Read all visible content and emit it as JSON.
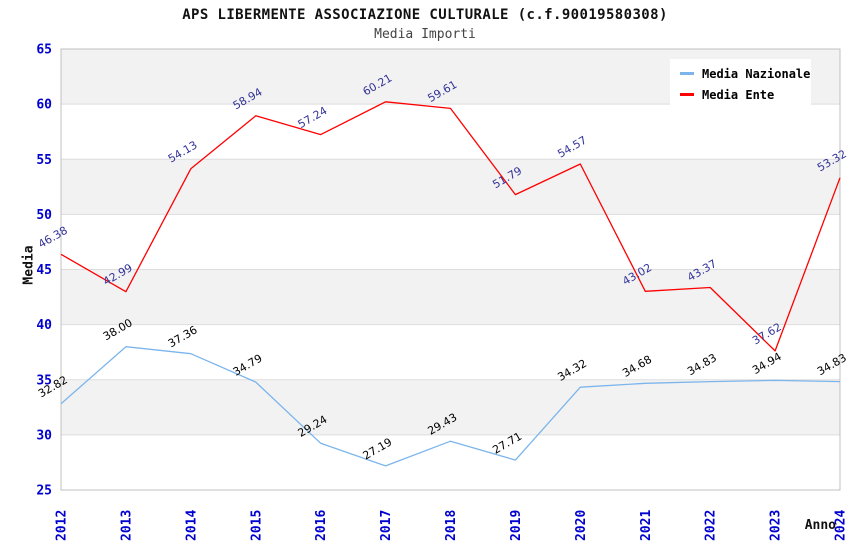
{
  "chart_data": {
    "type": "line",
    "title": "APS LIBERMENTE ASSOCIAZIONE CULTURALE (c.f.90019580308)",
    "subtitle": "Media Importi",
    "xlabel": "Anno",
    "ylabel": "Media",
    "ylim": [
      25,
      65
    ],
    "ytick_step": 5,
    "grid": "horizontal-lines-with-alternating-bands",
    "legend_position": "top-right",
    "categories": [
      "2012",
      "2013",
      "2014",
      "2015",
      "2016",
      "2017",
      "2018",
      "2019",
      "2020",
      "2021",
      "2022",
      "2023",
      "2024"
    ],
    "series": [
      {
        "name": "Media Nazionale",
        "color": "#7CB5EC",
        "label_color": "#000000",
        "values": [
          32.82,
          38.0,
          37.36,
          34.79,
          29.24,
          27.19,
          29.43,
          27.71,
          34.32,
          34.68,
          34.83,
          34.94,
          34.83
        ],
        "labels": [
          "32.82",
          "38.00",
          "37.36",
          "34.79",
          "29.24",
          "27.19",
          "29.43",
          "27.71",
          "34.32",
          "34.68",
          "34.83",
          "34.94",
          "34.83"
        ]
      },
      {
        "name": "Media Ente",
        "color": "#FF0000",
        "label_color": "#333399",
        "values": [
          46.38,
          42.99,
          54.13,
          58.94,
          57.24,
          60.21,
          59.61,
          51.79,
          54.57,
          43.02,
          43.37,
          37.62,
          53.32
        ],
        "labels": [
          "46.38",
          "42.99",
          "54.13",
          "58.94",
          "57.24",
          "60.21",
          "59.61",
          "51.79",
          "54.57",
          "43.02",
          "43.37",
          "37.62",
          "53.32"
        ]
      }
    ],
    "colors": {
      "axis_tick_text": "#0000D0",
      "band_gray": "#F2F2F2",
      "gridline": "#DDDDDD",
      "plot_border": "#C0C0C0",
      "title_text": "#111111"
    }
  }
}
